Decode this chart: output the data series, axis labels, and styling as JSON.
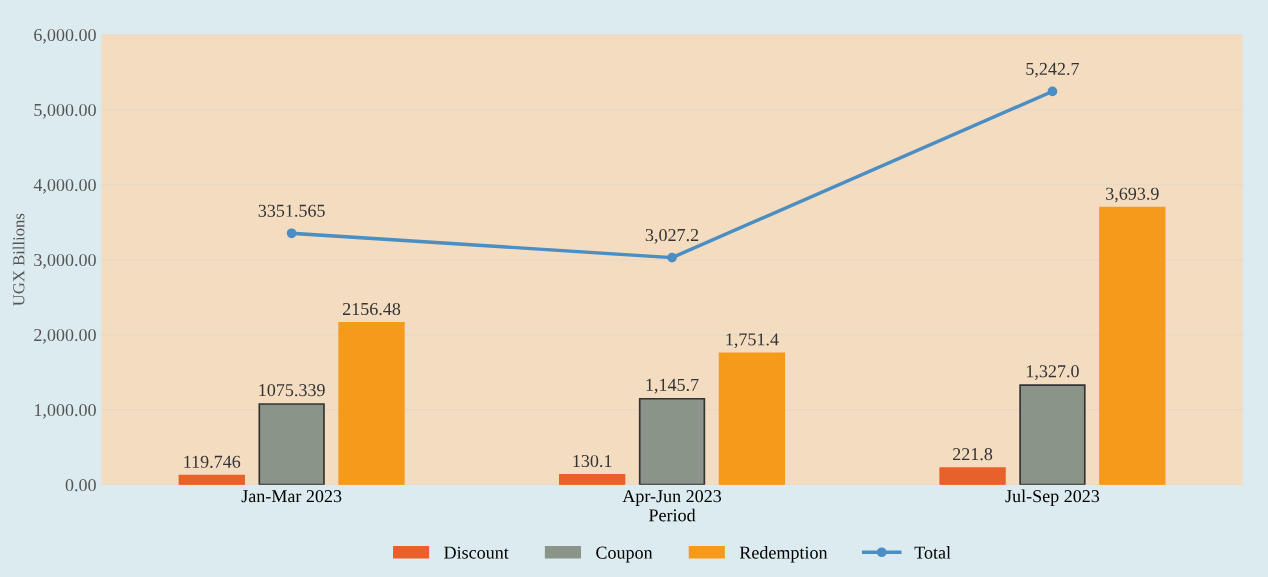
{
  "chart_data": {
    "type": "bar",
    "xlabel": "Period",
    "ylabel": "UGX Billions",
    "categories": [
      "Jan-Mar 2023",
      "Apr-Jun 2023",
      "Jul-Sep 2023"
    ],
    "series": [
      {
        "name": "Discount",
        "color": "#e8602a",
        "values": [
          119.746,
          130.1,
          221.8
        ],
        "value_labels": [
          "119.746",
          "130.1",
          "221.8"
        ]
      },
      {
        "name": "Coupon",
        "color": "#8a9488",
        "values": [
          1075.339,
          1145.7,
          1327.0
        ],
        "value_labels": [
          "1075.339",
          "1,145.7",
          "1,327.0"
        ]
      },
      {
        "name": "Redemption",
        "color": "#f59a1a",
        "values": [
          2156.48,
          1751.4,
          3693.9
        ],
        "value_labels": [
          "2156.48",
          "1,751.4",
          "3,693.9"
        ]
      },
      {
        "name": "Total",
        "type": "line",
        "color": "#4a8ec4",
        "marker": "circle",
        "values": [
          3351.565,
          3027.2,
          5242.7
        ],
        "value_labels": [
          "3351.565",
          "3,027.2",
          "5,242.7"
        ]
      }
    ],
    "ylim": [
      0,
      6000
    ],
    "yticks": [
      {
        "value": 0,
        "label": "0.00"
      },
      {
        "value": 1000,
        "label": "1,000.00"
      },
      {
        "value": 2000,
        "label": "2,000.00"
      },
      {
        "value": 3000,
        "label": "3,000.00"
      },
      {
        "value": 4000,
        "label": "4,000.00"
      },
      {
        "value": 5000,
        "label": "5,000.00"
      },
      {
        "value": 6000,
        "label": "6,000.00"
      }
    ],
    "grid": "y",
    "legend": "bottom"
  }
}
